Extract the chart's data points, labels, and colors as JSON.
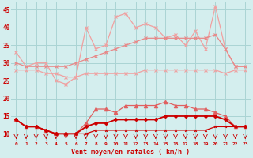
{
  "xlabel": "Vent moyen/en rafales ( km/h )",
  "x": [
    0,
    1,
    2,
    3,
    4,
    5,
    6,
    7,
    8,
    9,
    10,
    11,
    12,
    13,
    14,
    15,
    16,
    17,
    18,
    19,
    20,
    21,
    22,
    23
  ],
  "line1": [
    33,
    29,
    30,
    30,
    25,
    24,
    26,
    40,
    34,
    35,
    43,
    44,
    40,
    41,
    40,
    37,
    38,
    35,
    39,
    34,
    46,
    34,
    29,
    29
  ],
  "line2": [
    30,
    29,
    29,
    29,
    29,
    29,
    30,
    31,
    32,
    33,
    34,
    35,
    36,
    37,
    37,
    37,
    37,
    37,
    37,
    37,
    38,
    34,
    29,
    29
  ],
  "line3": [
    28,
    28,
    28,
    27,
    27,
    26,
    26,
    27,
    27,
    27,
    27,
    27,
    27,
    28,
    28,
    28,
    28,
    28,
    28,
    28,
    28,
    27,
    28,
    28
  ],
  "line4": [
    14,
    12,
    12,
    11,
    10,
    10,
    10,
    13,
    17,
    17,
    16,
    18,
    18,
    18,
    18,
    19,
    18,
    18,
    17,
    17,
    16,
    15,
    12,
    12
  ],
  "line5": [
    14,
    12,
    12,
    11,
    10,
    10,
    10,
    12,
    13,
    13,
    14,
    14,
    14,
    14,
    14,
    15,
    15,
    15,
    15,
    15,
    15,
    14,
    12,
    12
  ],
  "line6": [
    14,
    12,
    12,
    11,
    10,
    10,
    10,
    10,
    11,
    11,
    11,
    11,
    11,
    11,
    11,
    11,
    11,
    11,
    11,
    11,
    12,
    12,
    12,
    12
  ],
  "color_light1": "#f0a0a0",
  "color_light2": "#e88888",
  "color_medium": "#e06060",
  "color_dark": "#cc0000",
  "bg_color": "#d4eeee",
  "grid_color": "#aad4d4",
  "ylim": [
    8,
    47
  ],
  "yticks": [
    10,
    15,
    20,
    25,
    30,
    35,
    40,
    45
  ],
  "xticks": [
    0,
    1,
    2,
    3,
    4,
    5,
    6,
    7,
    8,
    9,
    10,
    11,
    12,
    13,
    14,
    15,
    16,
    17,
    18,
    19,
    20,
    21,
    22,
    23
  ]
}
